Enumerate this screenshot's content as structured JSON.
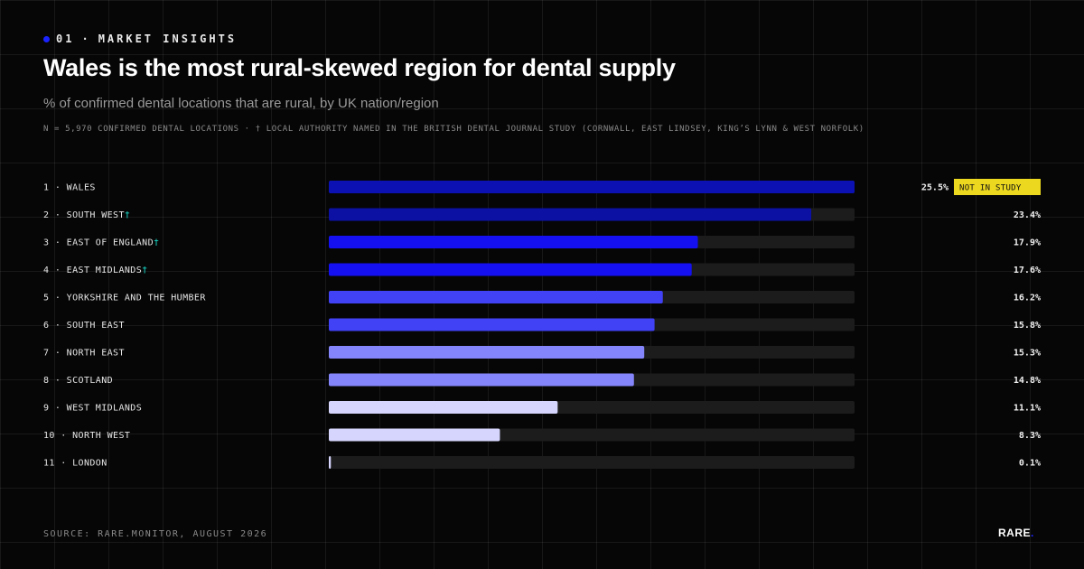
{
  "header": {
    "eyebrow_number": "01",
    "eyebrow_separator": "·",
    "eyebrow_label": "MARKET INSIGHTS",
    "title": "Wales is the most rural-skewed region for dental supply",
    "subtitle": "% of confirmed dental locations that are rural, by UK nation/region",
    "note": "N = 5,970 CONFIRMED DENTAL LOCATIONS · † LOCAL AUTHORITY NAMED IN THE BRITISH DENTAL JOURNAL STUDY (CORNWALL, EAST LINDSEY, KING’S LYNN & WEST NORFOLK)"
  },
  "footer": {
    "source": "SOURCE: RARE.MONITOR, AUGUST 2026",
    "brand": "RARE",
    "brand_dot": "."
  },
  "colors": {
    "background": "#060606",
    "track": "#1c1c1c",
    "accent": "#1a23ff",
    "dagger": "#19e3d2",
    "badge": "#ecd81f"
  },
  "chart_data": {
    "type": "bar",
    "orientation": "horizontal",
    "xlim": [
      0,
      25.5
    ],
    "value_suffix": "%",
    "categories": [
      "1 · WALES",
      "2 · SOUTH WEST",
      "3 · EAST OF ENGLAND",
      "4 · EAST MIDLANDS",
      "5 · YORKSHIRE AND THE HUMBER",
      "6 · SOUTH EAST",
      "7 · NORTH EAST",
      "8 · SCOTLAND",
      "9 · WEST MIDLANDS",
      "10 · NORTH WEST",
      "11 · LONDON"
    ],
    "values": [
      25.5,
      23.4,
      17.9,
      17.6,
      16.2,
      15.8,
      15.3,
      14.8,
      11.1,
      8.3,
      0.1
    ],
    "dagger": [
      false,
      true,
      true,
      true,
      false,
      false,
      false,
      false,
      false,
      false,
      false
    ],
    "dagger_symbol": "†",
    "bar_colors": [
      "#0c11b4",
      "#0c10a3",
      "#1410f2",
      "#1410f2",
      "#4141f5",
      "#4141f5",
      "#8585fb",
      "#8585fb",
      "#d5d5fd",
      "#d5d5fd",
      "#d5d5fd"
    ],
    "badges": [
      {
        "index": 0,
        "text": "NOT IN STUDY"
      }
    ]
  }
}
